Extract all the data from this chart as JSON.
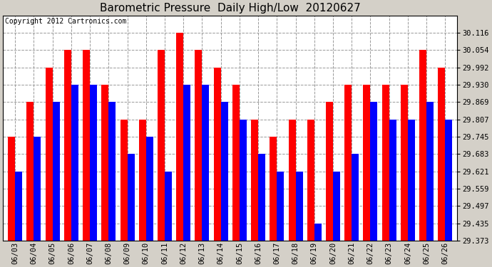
{
  "title": "Barometric Pressure  Daily High/Low  20120627",
  "copyright": "Copyright 2012 Cartronics.com",
  "dates": [
    "06/03",
    "06/04",
    "06/05",
    "06/06",
    "06/07",
    "06/08",
    "06/09",
    "06/10",
    "06/11",
    "06/12",
    "06/13",
    "06/14",
    "06/15",
    "06/16",
    "06/17",
    "06/18",
    "06/19",
    "06/20",
    "06/21",
    "06/22",
    "06/23",
    "06/24",
    "06/25",
    "06/26"
  ],
  "highs": [
    29.745,
    29.869,
    29.992,
    30.054,
    30.054,
    29.93,
    29.807,
    29.807,
    30.054,
    30.116,
    30.054,
    29.992,
    29.93,
    29.807,
    29.745,
    29.807,
    29.807,
    29.869,
    29.93,
    29.93,
    29.93,
    29.93,
    30.054,
    29.992
  ],
  "lows": [
    29.621,
    29.745,
    29.869,
    29.93,
    29.93,
    29.869,
    29.683,
    29.745,
    29.621,
    29.93,
    29.93,
    29.869,
    29.807,
    29.683,
    29.621,
    29.621,
    29.435,
    29.621,
    29.683,
    29.869,
    29.807,
    29.807,
    29.869,
    29.807
  ],
  "high_color": "#ff0000",
  "low_color": "#0000ff",
  "bg_color": "#d4d0c8",
  "plot_bg_color": "#ffffff",
  "grid_color": "#999999",
  "ymin": 29.373,
  "ymax": 30.178,
  "yticks": [
    29.373,
    29.435,
    29.497,
    29.559,
    29.621,
    29.683,
    29.745,
    29.807,
    29.869,
    29.93,
    29.992,
    30.054,
    30.116
  ],
  "bar_width": 0.38,
  "title_fontsize": 11,
  "tick_fontsize": 7.5,
  "copyright_fontsize": 7
}
